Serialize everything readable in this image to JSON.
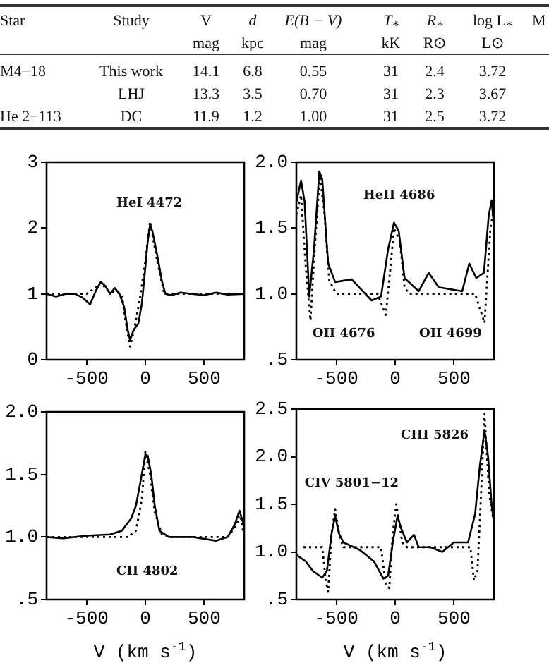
{
  "chart_data": [
    {
      "type": "other",
      "annotations": [
        "Star",
        "Study",
        "V",
        "d",
        "E(B − V)",
        "T$_{*}$",
        "R$_{*}$",
        "log L$_{*}$",
        "M",
        "mag",
        "kpc",
        "mag",
        "kK",
        "R⊙",
        "L⊙",
        "M4−18",
        "This work",
        "14.1",
        "6.8",
        "0.55",
        "31",
        "2.4",
        "3.72",
        "LHJ",
        "13.3",
        "3.5",
        "0.70",
        "31",
        "2.3",
        "3.67",
        "He 2−113",
        "DC",
        "11.9",
        "1.2",
        "1.00",
        "31",
        "2.5",
        "3.72"
      ]
    },
    {
      "type": "line",
      "xlim": [
        -840,
        840
      ],
      "xticks": [
        -500,
        0,
        500
      ],
      "ylim": [
        0,
        3
      ],
      "yticks": [
        0,
        1,
        2,
        3
      ],
      "grid": false,
      "annotations": [
        "HeI 4472"
      ],
      "series": [
        {
          "color": "#000000",
          "line_style": "solid",
          "x": [
            -840,
            -760,
            -680,
            -600,
            -540,
            -470,
            -420,
            -380,
            -340,
            -300,
            -260,
            -220,
            -180,
            -150,
            -130,
            -100,
            -60,
            -30,
            0,
            20,
            40,
            60,
            100,
            140,
            170,
            220,
            300,
            400,
            500,
            600,
            700,
            840
          ],
          "values": [
            1.0,
            0.96,
            1.0,
            1.0,
            0.95,
            0.84,
            1.05,
            1.18,
            1.12,
            1.0,
            1.09,
            1.0,
            0.8,
            0.45,
            0.3,
            0.45,
            0.55,
            0.85,
            1.4,
            1.8,
            2.05,
            1.95,
            1.6,
            1.2,
            1.0,
            0.98,
            1.02,
            1.0,
            0.98,
            1.02,
            0.99,
            1.0
          ]
        },
        {
          "color": "#000000",
          "line_style": "dotted",
          "x": [
            -840,
            -500,
            -420,
            -380,
            -320,
            -200,
            -170,
            -130,
            -90,
            -40,
            0,
            40,
            100,
            160,
            840
          ],
          "values": [
            1.0,
            1.0,
            1.1,
            1.17,
            1.05,
            1.0,
            0.6,
            0.2,
            0.5,
            1.0,
            1.5,
            2.1,
            1.5,
            1.0,
            1.0
          ]
        }
      ]
    },
    {
      "type": "line",
      "xlim": [
        -840,
        840
      ],
      "xticks": [
        -500,
        0,
        500
      ],
      "ylim": [
        0.5,
        2.0
      ],
      "yticks": [
        {
          "value": 0.5,
          "label": ".5"
        },
        {
          "value": 1.0,
          "label": "1.0"
        },
        {
          "value": 1.5,
          "label": "1.5"
        },
        {
          "value": 2.0,
          "label": "2.0"
        }
      ],
      "grid": false,
      "annotations": [
        "HeII 4686",
        "OII 4676",
        "OII 4699"
      ],
      "series": [
        {
          "color": "#000000",
          "line_style": "solid",
          "x": [
            -840,
            -800,
            -770,
            -730,
            -690,
            -645,
            -620,
            -570,
            -510,
            -370,
            -200,
            -120,
            -60,
            -10,
            30,
            80,
            200,
            285,
            370,
            570,
            630,
            690,
            755,
            795,
            820,
            840
          ],
          "values": [
            1.7,
            1.86,
            1.7,
            0.98,
            1.34,
            1.93,
            1.87,
            1.23,
            1.09,
            1.11,
            0.95,
            0.98,
            1.34,
            1.54,
            1.48,
            1.12,
            1.02,
            1.16,
            1.05,
            1.02,
            1.23,
            1.12,
            1.16,
            1.59,
            1.71,
            1.52
          ]
        },
        {
          "color": "#000000",
          "line_style": "dotted",
          "x": [
            -840,
            -800,
            -760,
            -720,
            -680,
            -640,
            -600,
            -560,
            -500,
            -150,
            -80,
            -40,
            -10,
            40,
            80,
            120,
            680,
            760,
            810,
            840
          ],
          "values": [
            1.6,
            1.75,
            1.2,
            0.8,
            1.4,
            1.9,
            1.6,
            1.1,
            1.0,
            1.0,
            0.84,
            1.2,
            1.5,
            1.4,
            1.05,
            1.0,
            1.0,
            0.78,
            1.5,
            1.65
          ]
        }
      ]
    },
    {
      "type": "line",
      "xlim": [
        -840,
        840
      ],
      "xticks": [
        -500,
        0,
        500
      ],
      "ylim": [
        0.5,
        2.0
      ],
      "yticks": [
        {
          "value": 0.5,
          "label": ".5"
        },
        {
          "value": 1.0,
          "label": "1.0"
        },
        {
          "value": 1.5,
          "label": "1.5"
        },
        {
          "value": 2.0,
          "label": "2.0"
        }
      ],
      "grid": false,
      "xlabel": "V (km s$^{-1}$)",
      "annotations": [
        "CII 4802"
      ],
      "series": [
        {
          "color": "#000000",
          "line_style": "solid",
          "x": [
            -840,
            -700,
            -500,
            -300,
            -200,
            -120,
            -80,
            -40,
            0,
            20,
            50,
            80,
            120,
            200,
            400,
            600,
            700,
            760,
            800,
            830,
            840
          ],
          "values": [
            1.0,
            0.99,
            1.01,
            1.02,
            1.05,
            1.15,
            1.25,
            1.45,
            1.66,
            1.65,
            1.5,
            1.25,
            1.05,
            1.0,
            1.0,
            0.97,
            1.0,
            1.1,
            1.21,
            1.12,
            1.05
          ]
        },
        {
          "color": "#000000",
          "line_style": "dotted",
          "x": [
            -840,
            -150,
            -80,
            -30,
            0,
            40,
            80,
            140,
            200,
            700,
            780,
            800,
            840
          ],
          "values": [
            1.0,
            1.0,
            1.05,
            1.3,
            1.68,
            1.5,
            1.2,
            1.02,
            1.0,
            1.0,
            1.1,
            1.2,
            1.0
          ]
        }
      ]
    },
    {
      "type": "line",
      "xlim": [
        -840,
        840
      ],
      "xticks": [
        -500,
        0,
        500
      ],
      "ylim": [
        0.5,
        2.5
      ],
      "yticks": [
        {
          "value": 0.5,
          "label": ".5"
        },
        {
          "value": 1.0,
          "label": "1.0"
        },
        {
          "value": 1.5,
          "label": "1.5"
        },
        {
          "value": 2.0,
          "label": "2.0"
        },
        {
          "value": 2.5,
          "label": "2.5"
        }
      ],
      "grid": false,
      "xlabel": "V (km s$^{-1}$)",
      "annotations": [
        "CIII 5826",
        "CIV 5801−12"
      ],
      "series": [
        {
          "color": "#000000",
          "line_style": "solid",
          "x": [
            -840,
            -760,
            -700,
            -620,
            -580,
            -540,
            -510,
            -480,
            -440,
            -300,
            -180,
            -100,
            -60,
            -20,
            20,
            50,
            100,
            160,
            200,
            300,
            400,
            500,
            620,
            680,
            720,
            760,
            790,
            820,
            840
          ],
          "values": [
            0.97,
            0.9,
            0.8,
            0.73,
            0.8,
            1.2,
            1.38,
            1.2,
            1.1,
            1.02,
            0.9,
            0.72,
            0.75,
            1.1,
            1.38,
            1.25,
            1.1,
            1.18,
            1.05,
            1.05,
            1.0,
            1.1,
            1.1,
            1.4,
            1.9,
            2.28,
            2.0,
            1.5,
            1.3
          ]
        },
        {
          "color": "#000000",
          "line_style": "dotted",
          "x": [
            -780,
            -620,
            -590,
            -570,
            -540,
            -510,
            -470,
            -440,
            -120,
            -80,
            -50,
            -20,
            10,
            60,
            100,
            500,
            640,
            670,
            700,
            730,
            760,
            800,
            840
          ],
          "values": [
            1.05,
            1.05,
            0.7,
            0.58,
            1.2,
            1.45,
            1.15,
            1.05,
            1.05,
            0.65,
            0.62,
            1.2,
            1.5,
            1.1,
            1.05,
            1.05,
            1.05,
            0.7,
            0.8,
            1.6,
            2.45,
            1.6,
            1.3
          ]
        }
      ]
    }
  ]
}
